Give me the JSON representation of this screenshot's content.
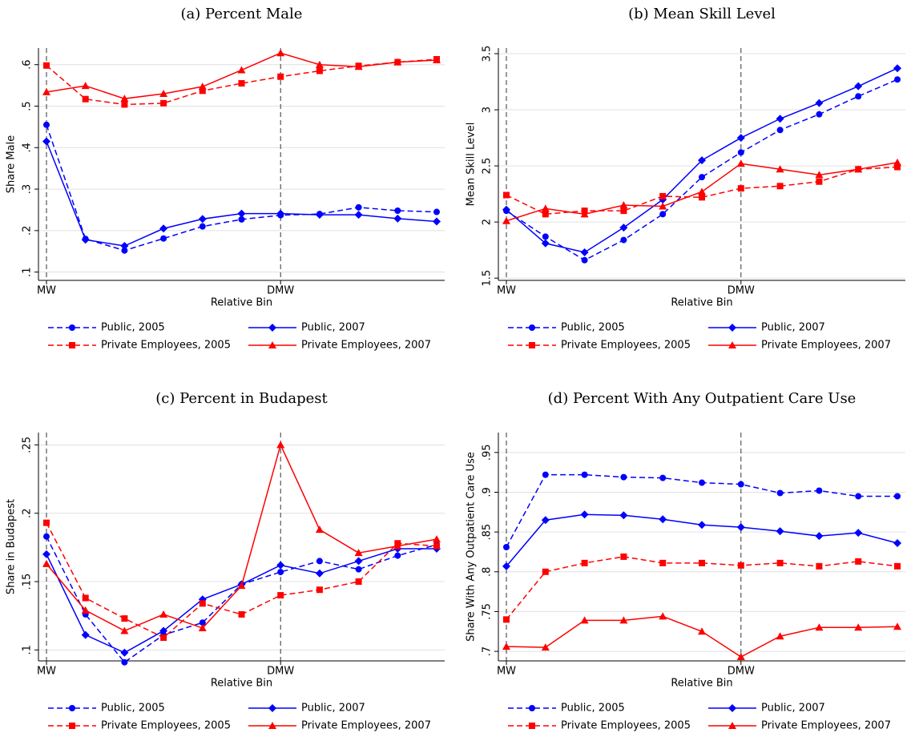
{
  "chart_data": [
    {
      "type": "line",
      "title": "(a) Percent Male",
      "xlabel": "Relative Bin",
      "ylabel": "Share Male",
      "categories": [
        "MW",
        null,
        null,
        null,
        null,
        null,
        "DMW",
        null,
        null,
        null,
        null
      ],
      "ylim": [
        0.08,
        0.64
      ],
      "yticks": [
        {
          "value": 0.1,
          "label": ".1"
        },
        {
          "value": 0.2,
          "label": ".2"
        },
        {
          "value": 0.3,
          "label": ".3"
        },
        {
          "value": 0.4,
          "label": ".4"
        },
        {
          "value": 0.5,
          "label": ".5"
        },
        {
          "value": 0.6,
          "label": ".6"
        }
      ],
      "grid": true,
      "series": [
        {
          "name": "Public, 2005",
          "color": "#0000ff",
          "dashed": true,
          "marker": "circle",
          "values": [
            0.455,
            0.18,
            0.152,
            0.181,
            0.21,
            0.227,
            0.237,
            0.24,
            0.256,
            0.248,
            0.245
          ]
        },
        {
          "name": "Public, 2007",
          "color": "#0000ff",
          "dashed": false,
          "marker": "diamond",
          "values": [
            0.415,
            0.178,
            0.163,
            0.205,
            0.228,
            0.241,
            0.241,
            0.238,
            0.238,
            0.229,
            0.222
          ]
        },
        {
          "name": "Private Employees, 2005",
          "color": "#ff0000",
          "dashed": true,
          "marker": "square",
          "values": [
            0.598,
            0.517,
            0.504,
            0.507,
            0.537,
            0.555,
            0.571,
            0.585,
            0.597,
            0.606,
            0.613
          ]
        },
        {
          "name": "Private Employees, 2007",
          "color": "#ff0000",
          "dashed": false,
          "marker": "triangle",
          "values": [
            0.534,
            0.549,
            0.518,
            0.53,
            0.547,
            0.587,
            0.628,
            0.6,
            0.595,
            0.606,
            0.611
          ]
        }
      ]
    },
    {
      "type": "line",
      "title": "(b) Mean Skill Level",
      "xlabel": "Relative Bin",
      "ylabel": "Mean Skill Level",
      "categories": [
        "MW",
        null,
        null,
        null,
        null,
        null,
        "DMW",
        null,
        null,
        null,
        null
      ],
      "ylim": [
        1.48,
        3.55
      ],
      "yticks": [
        1.5,
        2,
        2.5,
        3,
        3.5
      ],
      "grid": true,
      "series": [
        {
          "name": "Public, 2005",
          "color": "#0000ff",
          "dashed": true,
          "marker": "circle",
          "values": [
            2.1,
            1.87,
            1.66,
            1.84,
            2.07,
            2.4,
            2.62,
            2.82,
            2.96,
            3.12,
            3.27
          ]
        },
        {
          "name": "Public, 2007",
          "color": "#0000ff",
          "dashed": false,
          "marker": "diamond",
          "values": [
            2.11,
            1.81,
            1.73,
            1.95,
            2.2,
            2.55,
            2.75,
            2.92,
            3.06,
            3.21,
            3.37
          ]
        },
        {
          "name": "Private Employees, 2005",
          "color": "#ff0000",
          "dashed": true,
          "marker": "square",
          "values": [
            2.24,
            2.07,
            2.1,
            2.1,
            2.23,
            2.22,
            2.3,
            2.32,
            2.36,
            2.47,
            2.49
          ]
        },
        {
          "name": "Private Employees, 2007",
          "color": "#ff0000",
          "dashed": false,
          "marker": "triangle",
          "values": [
            2.01,
            2.12,
            2.07,
            2.15,
            2.14,
            2.27,
            2.52,
            2.47,
            2.42,
            2.47,
            2.53
          ]
        }
      ]
    },
    {
      "type": "line",
      "title": "(c) Percent in Budapest",
      "xlabel": "Relative Bin",
      "ylabel": "Share in Budapest",
      "categories": [
        "MW",
        null,
        null,
        null,
        null,
        null,
        "DMW",
        null,
        null,
        null,
        null
      ],
      "ylim": [
        0.092,
        0.259
      ],
      "yticks": [
        {
          "value": 0.1,
          "label": ".1"
        },
        {
          "value": 0.15,
          "label": ".15"
        },
        {
          "value": 0.2,
          "label": ".2"
        },
        {
          "value": 0.25,
          "label": ".25"
        }
      ],
      "grid": true,
      "series": [
        {
          "name": "Public, 2005",
          "color": "#0000ff",
          "dashed": true,
          "marker": "circle",
          "values": [
            0.183,
            0.126,
            0.091,
            0.111,
            0.12,
            0.148,
            0.157,
            0.165,
            0.159,
            0.169,
            0.177
          ]
        },
        {
          "name": "Public, 2007",
          "color": "#0000ff",
          "dashed": false,
          "marker": "diamond",
          "values": [
            0.17,
            0.111,
            0.098,
            0.114,
            0.137,
            0.148,
            0.162,
            0.156,
            0.165,
            0.174,
            0.174
          ]
        },
        {
          "name": "Private Employees, 2005",
          "color": "#ff0000",
          "dashed": true,
          "marker": "square",
          "values": [
            0.193,
            0.138,
            0.123,
            0.109,
            0.134,
            0.126,
            0.14,
            0.144,
            0.15,
            0.178,
            0.176
          ]
        },
        {
          "name": "Private Employees, 2007",
          "color": "#ff0000",
          "dashed": false,
          "marker": "triangle",
          "values": [
            0.163,
            0.129,
            0.114,
            0.126,
            0.116,
            0.147,
            0.25,
            0.188,
            0.171,
            0.176,
            0.181
          ]
        }
      ]
    },
    {
      "type": "line",
      "title": "(d) Percent With Any Outpatient Care Use",
      "xlabel": "Relative Bin",
      "ylabel": "Share With Any Outpatient Care Use",
      "categories": [
        "MW",
        null,
        null,
        null,
        null,
        null,
        "DMW",
        null,
        null,
        null,
        null
      ],
      "ylim": [
        0.688,
        0.975
      ],
      "yticks": [
        {
          "value": 0.7,
          "label": ".7"
        },
        {
          "value": 0.75,
          "label": ".75"
        },
        {
          "value": 0.8,
          "label": ".8"
        },
        {
          "value": 0.85,
          "label": ".85"
        },
        {
          "value": 0.9,
          "label": ".9"
        },
        {
          "value": 0.95,
          "label": ".95"
        }
      ],
      "grid": true,
      "series": [
        {
          "name": "Public, 2005",
          "color": "#0000ff",
          "dashed": true,
          "marker": "circle",
          "values": [
            0.831,
            0.922,
            0.922,
            0.919,
            0.918,
            0.912,
            0.91,
            0.899,
            0.902,
            0.895,
            0.895
          ]
        },
        {
          "name": "Public, 2007",
          "color": "#0000ff",
          "dashed": false,
          "marker": "diamond",
          "values": [
            0.807,
            0.865,
            0.872,
            0.871,
            0.866,
            0.859,
            0.856,
            0.851,
            0.845,
            0.849,
            0.836
          ]
        },
        {
          "name": "Private Employees, 2005",
          "color": "#ff0000",
          "dashed": true,
          "marker": "square",
          "values": [
            0.74,
            0.8,
            0.811,
            0.819,
            0.811,
            0.811,
            0.808,
            0.811,
            0.807,
            0.813,
            0.807
          ]
        },
        {
          "name": "Private Employees, 2007",
          "color": "#ff0000",
          "dashed": false,
          "marker": "triangle",
          "values": [
            0.706,
            0.705,
            0.739,
            0.739,
            0.744,
            0.725,
            0.693,
            0.719,
            0.73,
            0.73,
            0.731
          ]
        }
      ]
    }
  ]
}
